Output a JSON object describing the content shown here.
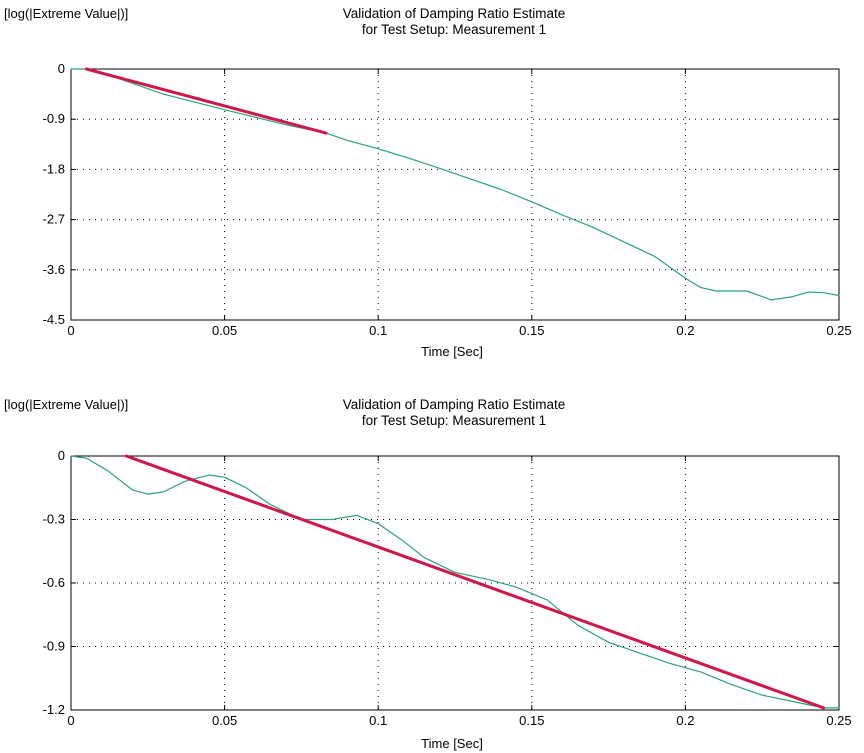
{
  "charts": [
    {
      "ylabel_top": "[log(|Extreme Value|)]",
      "title_line1": "Validation of Damping Ratio Estimate",
      "title_line2": "for Test Setup: Measurement 1",
      "xlabel": "Time [Sec]",
      "xticks": [
        "0",
        "0.05",
        "0.1",
        "0.15",
        "0.2",
        "0.25"
      ],
      "yticks": [
        "0",
        "-0.9",
        "-1.8",
        "-2.7",
        "-3.6",
        "-4.5"
      ]
    },
    {
      "ylabel_top": "[log(|Extreme Value|)]",
      "title_line1": "Validation of Damping Ratio Estimate",
      "title_line2": "for Test Setup: Measurement 1",
      "xlabel": "Time [Sec]",
      "xticks": [
        "0",
        "0.05",
        "0.1",
        "0.15",
        "0.2",
        "0.25"
      ],
      "yticks": [
        "0",
        "-0.3",
        "-0.6",
        "-0.9",
        "-1.2"
      ]
    }
  ],
  "colors": {
    "measured": "#2aa37a",
    "fit": "#d1164a",
    "grid": "#000000"
  },
  "chart_data": [
    {
      "type": "line",
      "title": "Validation of Damping Ratio Estimate for Test Setup: Measurement 1",
      "xlabel": "Time [Sec]",
      "ylabel": "[log(|Extreme Value|)]",
      "xlim": [
        0,
        0.25
      ],
      "ylim": [
        -4.5,
        0
      ],
      "xticks": [
        0,
        0.05,
        0.1,
        0.15,
        0.2,
        0.25
      ],
      "yticks": [
        0,
        -0.9,
        -1.8,
        -2.7,
        -3.6,
        -4.5
      ],
      "grid": true,
      "series": [
        {
          "color": "#2aa37a",
          "x": [
            0,
            0.005,
            0.015,
            0.03,
            0.05,
            0.07,
            0.083,
            0.09,
            0.1,
            0.11,
            0.12,
            0.13,
            0.14,
            0.15,
            0.16,
            0.17,
            0.18,
            0.19,
            0.2,
            0.205,
            0.21,
            0.22,
            0.228,
            0.235,
            0.24,
            0.245,
            0.25
          ],
          "y": [
            0,
            0.0,
            -0.16,
            -0.45,
            -0.73,
            -1.0,
            -1.15,
            -1.28,
            -1.43,
            -1.6,
            -1.78,
            -1.97,
            -2.16,
            -2.38,
            -2.62,
            -2.84,
            -3.1,
            -3.36,
            -3.75,
            -3.92,
            -3.98,
            -3.98,
            -4.14,
            -4.08,
            -4.0,
            -4.01,
            -4.06
          ]
        },
        {
          "color": "#d1164a",
          "x": [
            0.005,
            0.083
          ],
          "y": [
            0.0,
            -1.15
          ]
        }
      ]
    },
    {
      "type": "line",
      "title": "Validation of Damping Ratio Estimate for Test Setup: Measurement 1",
      "xlabel": "Time [Sec]",
      "ylabel": "[log(|Extreme Value|)]",
      "xlim": [
        0,
        0.25
      ],
      "ylim": [
        -1.2,
        0
      ],
      "xticks": [
        0,
        0.05,
        0.1,
        0.15,
        0.2,
        0.25
      ],
      "yticks": [
        0,
        -0.3,
        -0.6,
        -0.9,
        -1.2
      ],
      "grid": true,
      "series": [
        {
          "color": "#2aa37a",
          "x": [
            0,
            0.005,
            0.012,
            0.02,
            0.025,
            0.03,
            0.037,
            0.045,
            0.05,
            0.057,
            0.065,
            0.075,
            0.085,
            0.093,
            0.1,
            0.108,
            0.115,
            0.125,
            0.135,
            0.145,
            0.155,
            0.165,
            0.175,
            0.185,
            0.195,
            0.205,
            0.215,
            0.225,
            0.235,
            0.245,
            0.25
          ],
          "y": [
            0,
            -0.01,
            -0.07,
            -0.16,
            -0.18,
            -0.17,
            -0.12,
            -0.09,
            -0.1,
            -0.15,
            -0.23,
            -0.3,
            -0.3,
            -0.28,
            -0.32,
            -0.4,
            -0.48,
            -0.55,
            -0.58,
            -0.62,
            -0.68,
            -0.8,
            -0.88,
            -0.93,
            -0.98,
            -1.02,
            -1.08,
            -1.13,
            -1.16,
            -1.19,
            -1.19
          ]
        },
        {
          "color": "#d1164a",
          "x": [
            0.018,
            0.245
          ],
          "y": [
            0.0,
            -1.19
          ]
        }
      ]
    }
  ]
}
